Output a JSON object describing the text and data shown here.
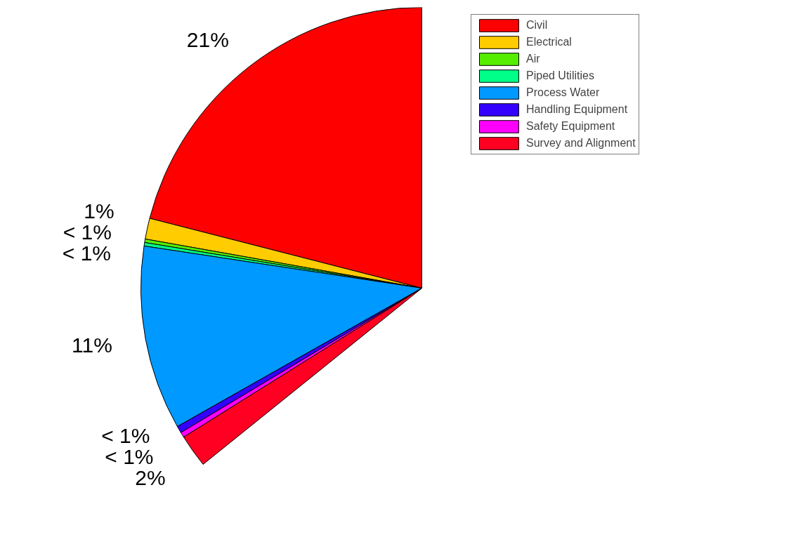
{
  "chart_data": {
    "type": "pie",
    "categories": [
      "Civil",
      "Electrical",
      "Air",
      "Piped Utilities",
      "Process Water",
      "Handling Equipment",
      "Safety Equipment",
      "Survey and Alignment"
    ],
    "values": [
      21,
      1.2,
      0.2,
      0.2,
      10.6,
      0.4,
      0.3,
      1.9
    ],
    "colors": [
      "#ff0000",
      "#ffcc00",
      "#55ee00",
      "#00ff88",
      "#0099ff",
      "#3300ff",
      "#ff00ff",
      "#ff0022"
    ],
    "value_labels": [
      "21%",
      "1%",
      "< 1%",
      "< 1%",
      "11%",
      "< 1%",
      "< 1%",
      "2%"
    ],
    "legend": "right"
  }
}
